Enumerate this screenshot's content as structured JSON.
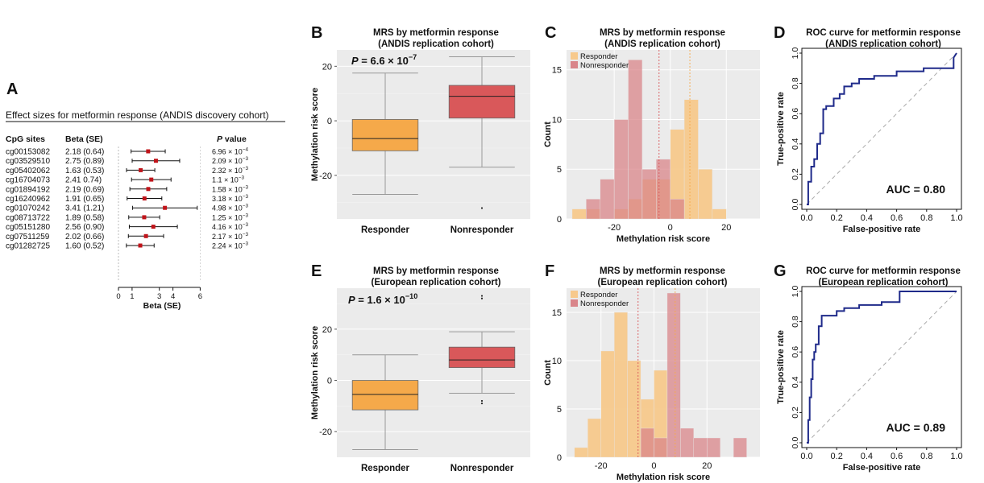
{
  "panelA": {
    "letter": "A",
    "title": "Effect sizes for metformin response (ANDIS discovery cohort)",
    "col_cpg": "CpG sites",
    "col_beta": "Beta (SE)",
    "col_p_italic": "P",
    "col_p_rest": " value",
    "rows": [
      {
        "cpg": "cg00153082",
        "beta_se": "2.18 (0.64)",
        "p_mant": "6.96 × 10",
        "p_exp": "−4",
        "beta": 2.18,
        "se": 0.64
      },
      {
        "cpg": "cg03529510",
        "beta_se": "2.75 (0.89)",
        "p_mant": "2.09 × 10",
        "p_exp": "−3",
        "beta": 2.75,
        "se": 0.89
      },
      {
        "cpg": "cg05402062",
        "beta_se": "1.63 (0.53)",
        "p_mant": "2.32 × 10",
        "p_exp": "−3",
        "beta": 1.63,
        "se": 0.53
      },
      {
        "cpg": "cg16704073",
        "beta_se": "2.41 0.74)",
        "p_mant": "1.1 × 10",
        "p_exp": "−3",
        "beta": 2.41,
        "se": 0.74
      },
      {
        "cpg": "cg01894192",
        "beta_se": "2.19 (0.69)",
        "p_mant": "1.58 × 10",
        "p_exp": "−3",
        "beta": 2.19,
        "se": 0.69
      },
      {
        "cpg": "cg16240962",
        "beta_se": "1.91 (0.65)",
        "p_mant": "3.18 × 10",
        "p_exp": "−3",
        "beta": 1.91,
        "se": 0.65
      },
      {
        "cpg": "cg01070242",
        "beta_se": "3.41 (1.21)",
        "p_mant": "4.98 × 10",
        "p_exp": "−3",
        "beta": 3.41,
        "se": 1.21
      },
      {
        "cpg": "cg08713722",
        "beta_se": "1.89 (0.58)",
        "p_mant": "1.25 × 10",
        "p_exp": "−3",
        "beta": 1.89,
        "se": 0.58
      },
      {
        "cpg": "cg05151280",
        "beta_se": "2.56 (0.90)",
        "p_mant": "4.16 × 10",
        "p_exp": "−3",
        "beta": 2.56,
        "se": 0.9
      },
      {
        "cpg": "cg07511259",
        "beta_se": "2.02 (0.66)",
        "p_mant": "2.17 × 10",
        "p_exp": "−3",
        "beta": 2.02,
        "se": 0.66
      },
      {
        "cpg": "cg01282725",
        "beta_se": "1.60 (0.52)",
        "p_mant": "2.24 × 10",
        "p_exp": "−3",
        "beta": 1.6,
        "se": 0.52
      }
    ],
    "xaxis_label": "Beta (SE)",
    "xticks": [
      0,
      1,
      3,
      4,
      6
    ]
  },
  "colors": {
    "responder": "#f5a94a",
    "nonresponder": "#d9585a",
    "responder_hist": "#f7c98c",
    "nonresponder_hist": "#d9858a",
    "overlap_hist": "#e07a5a",
    "roc_line": "#1f2a8a",
    "panel_bg": "#ebebeb",
    "forest_point": "#c0141a"
  },
  "chart_data": [
    {
      "panel": "B",
      "type": "box",
      "title": "MRS by metformin response",
      "subtitle": "(ANDIS replication cohort)",
      "ylabel": "Methylation risk score",
      "xlabel": "",
      "categories": [
        "Responder",
        "Nonresponder"
      ],
      "p_prefix": "P",
      "p_text": " = 6.6 × 10",
      "p_exp": "−7",
      "ylim": [
        -36,
        26
      ],
      "yticks": [
        20,
        0,
        -20
      ],
      "boxes": [
        {
          "name": "Responder",
          "min": -27,
          "q1": -11,
          "median": -6.5,
          "q3": 0.5,
          "max": 17.5,
          "outliers": []
        },
        {
          "name": "Nonresponder",
          "min": -17,
          "q1": 1,
          "median": 9,
          "q3": 13,
          "max": 23.5,
          "outliers": [
            -32
          ]
        }
      ]
    },
    {
      "panel": "C",
      "type": "histogram",
      "title": "MRS by metformin response",
      "subtitle": "(ANDIS replication cohort)",
      "xlabel": "Methylation risk score",
      "ylabel": "Count",
      "xlim": [
        -37,
        32
      ],
      "ylim": [
        0,
        17
      ],
      "xticks": [
        -20,
        0,
        20
      ],
      "yticks": [
        0,
        5,
        10,
        15
      ],
      "bin_start": -35,
      "bin_width": 5,
      "series": [
        {
          "name": "Responder",
          "values": [
            1,
            1,
            0,
            1,
            2,
            4,
            4,
            9,
            12,
            5,
            1
          ]
        },
        {
          "name": "Nonresponder",
          "values": [
            0,
            2,
            4,
            10,
            16,
            5,
            6,
            2,
            0,
            0,
            0
          ]
        }
      ],
      "vlines": [
        -4,
        7
      ]
    },
    {
      "panel": "D",
      "type": "line",
      "title": "ROC curve for metformin response",
      "subtitle": "(ANDIS replication cohort)",
      "xlabel": "False-positive rate",
      "ylabel": "True-positive rate",
      "xlim": [
        0,
        1
      ],
      "ylim": [
        0,
        1
      ],
      "xticks": [
        0.0,
        0.2,
        0.4,
        0.6,
        0.8,
        1.0
      ],
      "yticks": [
        0.0,
        0.2,
        0.4,
        0.6,
        0.8,
        1.0
      ],
      "auc_text": "AUC = 0.80",
      "x": [
        0,
        0.01,
        0.01,
        0.03,
        0.03,
        0.05,
        0.05,
        0.07,
        0.07,
        0.09,
        0.09,
        0.11,
        0.11,
        0.13,
        0.13,
        0.18,
        0.18,
        0.22,
        0.22,
        0.25,
        0.25,
        0.3,
        0.3,
        0.35,
        0.35,
        0.45,
        0.45,
        0.6,
        0.6,
        0.78,
        0.78,
        0.98,
        0.98,
        1.0
      ],
      "y": [
        0,
        0,
        0.15,
        0.15,
        0.25,
        0.25,
        0.3,
        0.3,
        0.4,
        0.4,
        0.47,
        0.47,
        0.63,
        0.63,
        0.65,
        0.65,
        0.7,
        0.7,
        0.73,
        0.73,
        0.78,
        0.78,
        0.8,
        0.8,
        0.83,
        0.83,
        0.85,
        0.85,
        0.88,
        0.88,
        0.9,
        0.9,
        0.97,
        1.0
      ]
    },
    {
      "panel": "E",
      "type": "box",
      "title": "MRS by metformin response",
      "subtitle": "(European replication cohort)",
      "ylabel": "Methylation risk score",
      "xlabel": "",
      "categories": [
        "Responder",
        "Nonresponder"
      ],
      "p_prefix": "P",
      "p_text": " = 1.6 × 10",
      "p_exp": "−10",
      "ylim": [
        -30,
        36
      ],
      "yticks": [
        20,
        0,
        -20
      ],
      "boxes": [
        {
          "name": "Responder",
          "min": -27,
          "q1": -11.5,
          "median": -5.5,
          "q3": 0,
          "max": 10,
          "outliers": []
        },
        {
          "name": "Nonresponder",
          "min": -5,
          "q1": 5,
          "median": 8,
          "q3": 13,
          "max": 19,
          "outliers": [
            -8,
            -9,
            32,
            33
          ]
        }
      ]
    },
    {
      "panel": "F",
      "type": "histogram",
      "title": "MRS by metformin response",
      "subtitle": "(European replication cohort)",
      "xlabel": "Methylation risk score",
      "ylabel": "Count",
      "xlim": [
        -33,
        40
      ],
      "ylim": [
        0,
        17.5
      ],
      "xticks": [
        -20,
        0,
        20
      ],
      "yticks": [
        0,
        5,
        10,
        15
      ],
      "bin_start": -30,
      "bin_width": 5,
      "series": [
        {
          "name": "Responder",
          "values": [
            1,
            4,
            11,
            15,
            10,
            6,
            9,
            0,
            0,
            0,
            0,
            0,
            0,
            0
          ]
        },
        {
          "name": "Nonresponder",
          "values": [
            0,
            0,
            0,
            0,
            0,
            3,
            2,
            17,
            3,
            2,
            2,
            0,
            2,
            0
          ]
        }
      ],
      "vlines": [
        -6,
        8
      ]
    },
    {
      "panel": "G",
      "type": "line",
      "title": "ROC curve for metformin response",
      "subtitle": "(European replication cohort)",
      "xlabel": "False-positive rate",
      "ylabel": "True-positive rate",
      "xlim": [
        0,
        1
      ],
      "ylim": [
        0,
        1
      ],
      "xticks": [
        0.0,
        0.2,
        0.4,
        0.6,
        0.8,
        1.0
      ],
      "yticks": [
        0.0,
        0.2,
        0.4,
        0.6,
        0.8,
        1.0
      ],
      "auc_text": "AUC = 0.89",
      "x": [
        0,
        0.01,
        0.01,
        0.02,
        0.02,
        0.03,
        0.03,
        0.04,
        0.04,
        0.05,
        0.05,
        0.06,
        0.06,
        0.08,
        0.08,
        0.1,
        0.1,
        0.2,
        0.2,
        0.25,
        0.25,
        0.35,
        0.35,
        0.5,
        0.5,
        0.62,
        0.62,
        1.0
      ],
      "y": [
        0,
        0,
        0.15,
        0.15,
        0.3,
        0.3,
        0.42,
        0.42,
        0.55,
        0.55,
        0.6,
        0.6,
        0.65,
        0.65,
        0.77,
        0.77,
        0.84,
        0.84,
        0.87,
        0.87,
        0.89,
        0.89,
        0.91,
        0.91,
        0.93,
        0.93,
        1.0,
        1.0
      ]
    }
  ]
}
